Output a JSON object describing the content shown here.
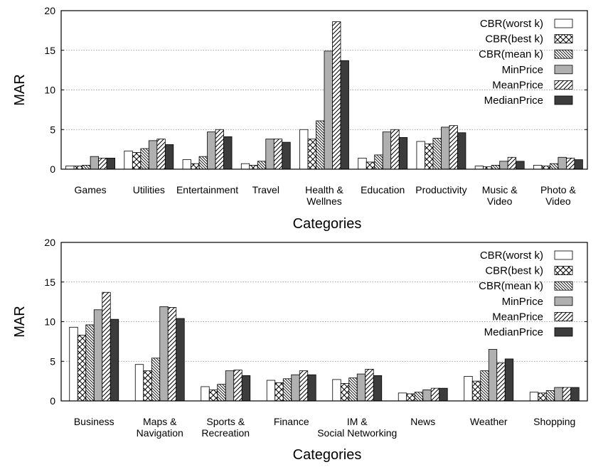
{
  "chart_data": [
    {
      "type": "bar",
      "ylabel": "MAR",
      "xlabel": "Categories",
      "ylim": [
        0,
        20
      ],
      "yticks": [
        0,
        5,
        10,
        15,
        20
      ],
      "grid": true,
      "legend_position": "top-right",
      "categories": [
        "Games",
        "Utilities",
        "Entertainment",
        "Travel",
        "Health &\nWellnes",
        "Education",
        "Productivity",
        "Music &\nVideo",
        "Photo &\nVideo"
      ],
      "series": [
        {
          "name": "CBR(worst k)",
          "pattern": "white",
          "values": [
            0.4,
            2.3,
            1.2,
            0.7,
            5.0,
            1.4,
            3.5,
            0.4,
            0.5
          ]
        },
        {
          "name": "CBR(best k)",
          "pattern": "crosshatch",
          "values": [
            0.4,
            2.1,
            0.7,
            0.5,
            3.8,
            0.9,
            3.2,
            0.3,
            0.4
          ]
        },
        {
          "name": "CBR(mean k)",
          "pattern": "backslash",
          "values": [
            0.5,
            2.6,
            1.6,
            1.0,
            6.1,
            1.8,
            3.9,
            0.5,
            0.7
          ]
        },
        {
          "name": "MinPrice",
          "pattern": "gray",
          "values": [
            1.6,
            3.6,
            4.7,
            3.8,
            14.9,
            4.7,
            5.3,
            1.0,
            1.5
          ]
        },
        {
          "name": "MeanPrice",
          "pattern": "slash",
          "values": [
            1.4,
            3.8,
            5.0,
            3.8,
            18.6,
            5.0,
            5.5,
            1.5,
            1.4
          ]
        },
        {
          "name": "MedianPrice",
          "pattern": "dark",
          "values": [
            1.4,
            3.1,
            4.1,
            3.4,
            13.7,
            4.0,
            4.6,
            1.0,
            1.2
          ]
        }
      ]
    },
    {
      "type": "bar",
      "ylabel": "MAR",
      "xlabel": "Categories",
      "ylim": [
        0,
        20
      ],
      "yticks": [
        0,
        5,
        10,
        15,
        20
      ],
      "grid": true,
      "legend_position": "top-right",
      "categories": [
        "Business",
        "Maps &\nNavigation",
        "Sports &\nRecreation",
        "Finance",
        "IM &\nSocial Networking",
        "News",
        "Weather",
        "Shopping"
      ],
      "series": [
        {
          "name": "CBR(worst k)",
          "pattern": "white",
          "values": [
            9.3,
            4.6,
            1.8,
            2.6,
            2.7,
            1.0,
            3.1,
            1.1
          ]
        },
        {
          "name": "CBR(best k)",
          "pattern": "crosshatch",
          "values": [
            8.3,
            3.8,
            1.4,
            2.3,
            2.2,
            0.9,
            2.5,
            1.0
          ]
        },
        {
          "name": "CBR(mean k)",
          "pattern": "backslash",
          "values": [
            9.6,
            5.4,
            2.1,
            2.8,
            2.9,
            1.1,
            3.8,
            1.3
          ]
        },
        {
          "name": "MinPrice",
          "pattern": "gray",
          "values": [
            11.5,
            11.9,
            3.8,
            3.3,
            3.4,
            1.4,
            6.5,
            1.7
          ]
        },
        {
          "name": "MeanPrice",
          "pattern": "slash",
          "values": [
            13.7,
            11.8,
            3.9,
            3.8,
            4.0,
            1.6,
            4.8,
            1.7
          ]
        },
        {
          "name": "MedianPrice",
          "pattern": "dark",
          "values": [
            10.3,
            10.4,
            3.2,
            3.3,
            3.2,
            1.6,
            5.3,
            1.7
          ]
        }
      ]
    }
  ]
}
